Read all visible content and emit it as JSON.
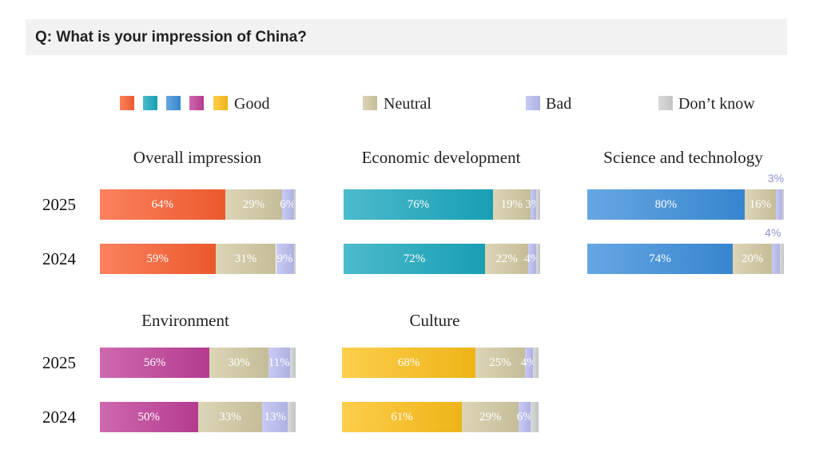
{
  "question": "Q:  What is your impression of China?",
  "legend": {
    "good_label": "Good",
    "neutral_label": "Neutral",
    "bad_label": "Bad",
    "dont_know_label": "Don’t know",
    "good_colors": [
      "#fa5f30",
      "#1aa8be",
      "#3b8edb",
      "#c03f98",
      "#fdc01a"
    ],
    "neutral_color": "#d2c9a2",
    "bad_color": "#b9bcf0",
    "dont_know_color": "#cfcfcf"
  },
  "chart_data": {
    "type": "bar",
    "orientation": "horizontal",
    "stacked": true,
    "panels": [
      {
        "title": "Overall impression",
        "good_color": "#fa5f30",
        "rows": [
          {
            "year": "2025",
            "good": 64,
            "neutral": 29,
            "bad": 6,
            "dont_know": 1,
            "good_label": "64%",
            "neutral_label": "29%",
            "bad_label": "6%"
          },
          {
            "year": "2024",
            "good": 59,
            "neutral": 31,
            "bad": 9,
            "dont_know": 1,
            "good_label": "59%",
            "neutral_label": "31%",
            "bad_label": "9%"
          }
        ]
      },
      {
        "title": "Economic development",
        "good_color": "#1aa8be",
        "rows": [
          {
            "year": "2025",
            "good": 76,
            "neutral": 19,
            "bad": 3,
            "dont_know": 2,
            "good_label": "76%",
            "neutral_label": "19%",
            "bad_label": "3%"
          },
          {
            "year": "2024",
            "good": 72,
            "neutral": 22,
            "bad": 4,
            "dont_know": 2,
            "good_label": "72%",
            "neutral_label": "22%",
            "bad_label": "4%"
          }
        ]
      },
      {
        "title": "Science and technology",
        "good_color": "#3b8edb",
        "rows": [
          {
            "year": "2025",
            "good": 80,
            "neutral": 16,
            "bad": 3,
            "dont_know": 1,
            "good_label": "80%",
            "neutral_label": "16%",
            "bad_label": "3%",
            "bad_label_outside": true
          },
          {
            "year": "2024",
            "good": 74,
            "neutral": 20,
            "bad": 4,
            "dont_know": 2,
            "good_label": "74%",
            "neutral_label": "20%",
            "bad_label": "4%",
            "bad_label_outside": true
          }
        ]
      },
      {
        "title": "Environment",
        "good_color": "#c03f98",
        "rows": [
          {
            "year": "2025",
            "good": 56,
            "neutral": 30,
            "bad": 11,
            "dont_know": 3,
            "good_label": "56%",
            "neutral_label": "30%",
            "bad_label": "11%"
          },
          {
            "year": "2024",
            "good": 50,
            "neutral": 33,
            "bad": 13,
            "dont_know": 4,
            "good_label": "50%",
            "neutral_label": "33%",
            "bad_label": "13%"
          }
        ]
      },
      {
        "title": "Culture",
        "good_color": "#fdc01a",
        "rows": [
          {
            "year": "2025",
            "good": 68,
            "neutral": 25,
            "bad": 4,
            "dont_know": 3,
            "good_label": "68%",
            "neutral_label": "25%",
            "bad_label": "4%"
          },
          {
            "year": "2024",
            "good": 61,
            "neutral": 29,
            "bad": 6,
            "dont_know": 4,
            "good_label": "61%",
            "neutral_label": "29%",
            "bad_label": "6%"
          }
        ]
      }
    ]
  }
}
